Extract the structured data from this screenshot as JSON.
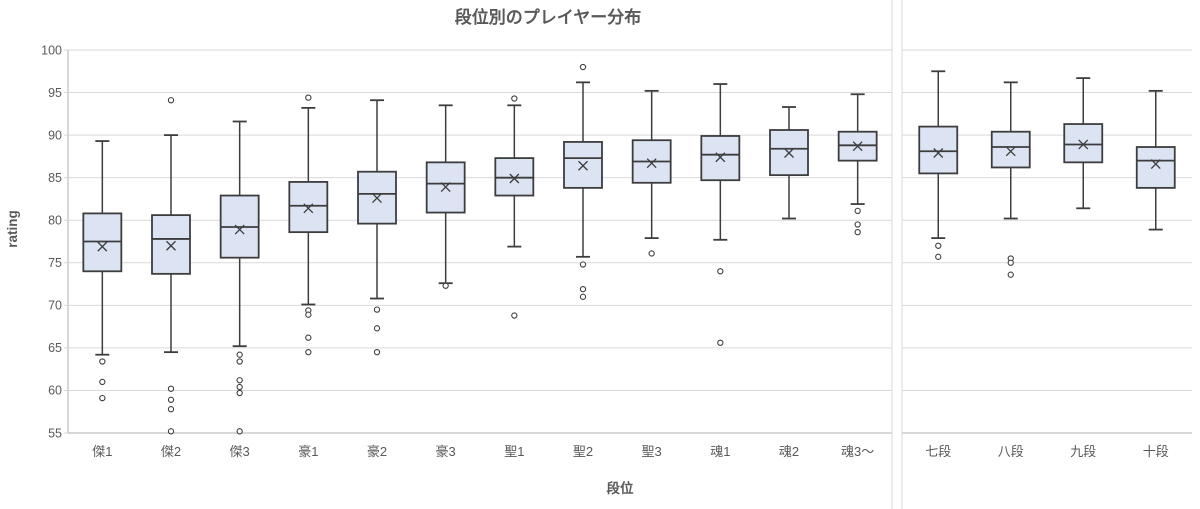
{
  "chart_data": {
    "type": "boxplot",
    "title": "段位別のプレイヤー分布",
    "xlabel": "段位",
    "ylabel": "rating",
    "ylim": [
      55,
      100
    ],
    "yticks": [
      55,
      60,
      65,
      70,
      75,
      80,
      85,
      90,
      95,
      100
    ],
    "grid": "horizontal",
    "legend": "none",
    "panels": [
      {
        "name": "kanji-ranks",
        "categories": [
          "傑1",
          "傑2",
          "傑3",
          "豪1",
          "豪2",
          "豪3",
          "聖1",
          "聖2",
          "聖3",
          "魂1",
          "魂2",
          "魂3〜"
        ],
        "boxes": [
          {
            "label": "傑1",
            "whisker_low": 64.2,
            "q1": 74.0,
            "median": 77.5,
            "mean": 76.9,
            "q3": 80.8,
            "whisker_high": 89.3,
            "outliers": [
              63.4,
              61.0,
              59.1
            ]
          },
          {
            "label": "傑2",
            "whisker_low": 64.5,
            "q1": 73.7,
            "median": 77.8,
            "mean": 77.0,
            "q3": 80.6,
            "whisker_high": 90.0,
            "outliers": [
              94.1,
              60.2,
              58.9,
              57.8,
              55.2
            ]
          },
          {
            "label": "傑3",
            "whisker_low": 65.2,
            "q1": 75.6,
            "median": 79.2,
            "mean": 78.9,
            "q3": 82.9,
            "whisker_high": 91.6,
            "outliers": [
              64.2,
              63.4,
              61.2,
              60.4,
              59.7,
              55.2
            ]
          },
          {
            "label": "豪1",
            "whisker_low": 70.1,
            "q1": 78.6,
            "median": 81.7,
            "mean": 81.4,
            "q3": 84.5,
            "whisker_high": 93.2,
            "outliers": [
              94.4,
              69.4,
              68.9,
              66.2,
              64.5
            ]
          },
          {
            "label": "豪2",
            "whisker_low": 70.8,
            "q1": 79.6,
            "median": 83.1,
            "mean": 82.6,
            "q3": 85.7,
            "whisker_high": 94.1,
            "outliers": [
              69.5,
              67.3,
              64.5
            ]
          },
          {
            "label": "豪3",
            "whisker_low": 72.6,
            "q1": 80.9,
            "median": 84.3,
            "mean": 83.9,
            "q3": 86.8,
            "whisker_high": 93.5,
            "outliers": [
              72.3
            ]
          },
          {
            "label": "聖1",
            "whisker_low": 76.9,
            "q1": 82.9,
            "median": 85.0,
            "mean": 84.9,
            "q3": 87.3,
            "whisker_high": 93.5,
            "outliers": [
              94.3,
              68.8
            ]
          },
          {
            "label": "聖2",
            "whisker_low": 75.7,
            "q1": 83.8,
            "median": 87.3,
            "mean": 86.4,
            "q3": 89.2,
            "whisker_high": 96.2,
            "outliers": [
              98.0,
              74.8,
              71.9,
              71.0
            ]
          },
          {
            "label": "聖3",
            "whisker_low": 77.9,
            "q1": 84.4,
            "median": 86.9,
            "mean": 86.7,
            "q3": 89.4,
            "whisker_high": 95.2,
            "outliers": [
              76.1
            ]
          },
          {
            "label": "魂1",
            "whisker_low": 77.7,
            "q1": 84.7,
            "median": 87.7,
            "mean": 87.4,
            "q3": 89.9,
            "whisker_high": 96.0,
            "outliers": [
              74.0,
              65.6
            ]
          },
          {
            "label": "魂2",
            "whisker_low": 80.2,
            "q1": 85.3,
            "median": 88.4,
            "mean": 87.9,
            "q3": 90.6,
            "whisker_high": 93.3,
            "outliers": []
          },
          {
            "label": "魂3〜",
            "whisker_low": 81.9,
            "q1": 87.0,
            "median": 88.8,
            "mean": 88.7,
            "q3": 90.4,
            "whisker_high": 94.8,
            "outliers": [
              81.1,
              79.5,
              78.6
            ]
          }
        ]
      },
      {
        "name": "dan-ranks",
        "categories": [
          "七段",
          "八段",
          "九段",
          "十段"
        ],
        "boxes": [
          {
            "label": "七段",
            "whisker_low": 77.9,
            "q1": 85.5,
            "median": 88.1,
            "mean": 87.9,
            "q3": 91.0,
            "whisker_high": 97.5,
            "outliers": [
              77.0,
              75.7
            ]
          },
          {
            "label": "八段",
            "whisker_low": 80.2,
            "q1": 86.2,
            "median": 88.6,
            "mean": 88.1,
            "q3": 90.4,
            "whisker_high": 96.2,
            "outliers": [
              75.5,
              75.0,
              73.6
            ]
          },
          {
            "label": "九段",
            "whisker_low": 81.4,
            "q1": 86.8,
            "median": 88.9,
            "mean": 88.9,
            "q3": 91.3,
            "whisker_high": 96.7,
            "outliers": []
          },
          {
            "label": "十段",
            "whisker_low": 78.9,
            "q1": 83.8,
            "median": 87.0,
            "mean": 86.6,
            "q3": 88.6,
            "whisker_high": 95.2,
            "outliers": []
          }
        ]
      }
    ]
  },
  "colors": {
    "box_fill": "#dce3f3",
    "box_border": "#3d3d3d",
    "whisker": "#3d3d3d",
    "mean_marker": "#3d3d3d",
    "outlier": "#3d3d3d",
    "grid": "#d9d9d9",
    "axis_line": "#bfbfbf",
    "panel_divider": "#d9d9d9",
    "text": "#595959"
  }
}
